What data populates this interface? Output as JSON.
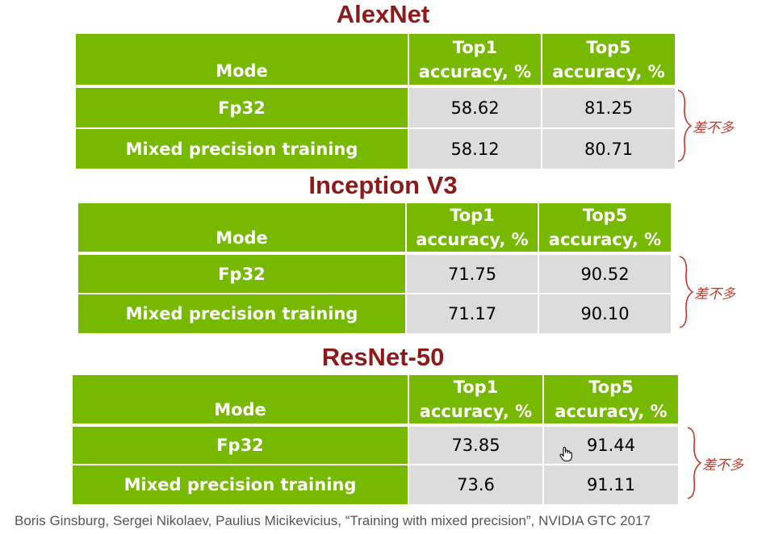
{
  "tables": [
    {
      "title": "AlexNet",
      "header": {
        "mode": "Mode",
        "top1_line1": "Top1",
        "top1_line2": "accuracy, %",
        "top5_line1": "Top5",
        "top5_line2": "accuracy, %"
      },
      "rows": [
        {
          "mode": "Fp32",
          "top1": "58.62",
          "top5": "81.25"
        },
        {
          "mode": "Mixed precision training",
          "top1": "58.12",
          "top5": "80.71"
        }
      ],
      "note": "差不多"
    },
    {
      "title": "Inception V3",
      "header": {
        "mode": "Mode",
        "top1_line1": "Top1",
        "top1_line2": "accuracy, %",
        "top5_line1": "Top5",
        "top5_line2": "accuracy, %"
      },
      "rows": [
        {
          "mode": "Fp32",
          "top1": "71.75",
          "top5": "90.52"
        },
        {
          "mode": "Mixed precision training",
          "top1": "71.17",
          "top5": "90.10"
        }
      ],
      "note": "差不多"
    },
    {
      "title": "ResNet-50",
      "header": {
        "mode": "Mode",
        "top1_line1": "Top1",
        "top1_line2": "accuracy, %",
        "top5_line1": "Top5",
        "top5_line2": "accuracy, %"
      },
      "rows": [
        {
          "mode": "Fp32",
          "top1": "73.85",
          "top5": "91.44"
        },
        {
          "mode": "Mixed precision training",
          "top1": "73.6",
          "top5": "91.11"
        }
      ],
      "note": "差不多"
    }
  ],
  "citation": "Boris Ginsburg, Sergei Nikolaev, Paulius Micikevicius, “Training with mixed precision”, NVIDIA GTC 2017",
  "colors": {
    "header_green": "#76B900",
    "value_gray": "#DCDCDC",
    "title_red": "#8B1A1A",
    "note_red": "#C0392B"
  },
  "icons": {
    "cursor": "hand-cursor-icon"
  }
}
